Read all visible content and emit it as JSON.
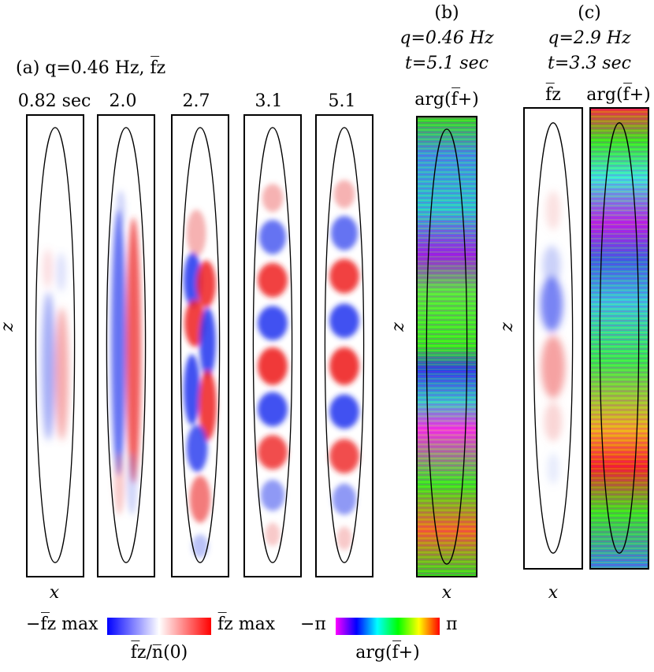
{
  "panel_a": {
    "title": "(a) q=0.46 Hz, f̅z",
    "time_labels": [
      "0.82 sec",
      "2.0",
      "2.7",
      "3.1",
      "5.1"
    ],
    "z_label": "z",
    "x_label": "x"
  },
  "panel_b": {
    "letter": "(b)",
    "q_line": "q=0.46 Hz",
    "t_line": "t=5.1 sec",
    "col_label": "arg(f̅+)",
    "z_label": "z",
    "x_label": "x"
  },
  "panel_c": {
    "letter": "(c)",
    "q_line": "q=2.9 Hz",
    "t_line": "t=3.3 sec",
    "col1_label": "f̅z",
    "col2_label": "arg(f̅+)",
    "z_label": "z",
    "x_label": "x"
  },
  "colorbars": {
    "fz": {
      "left": "−f̅z max",
      "right": "f̅z max",
      "caption": "f̅z/n̅(0)",
      "colors": [
        "#0000ff",
        "#ffffff",
        "#ff0000"
      ]
    },
    "phase": {
      "left": "−π",
      "right": "π",
      "caption": "arg(f̅+)",
      "colors": [
        "#ff00ff",
        "#0000ff",
        "#00ffff",
        "#00ff00",
        "#ffff00",
        "#ff0000"
      ]
    }
  }
}
